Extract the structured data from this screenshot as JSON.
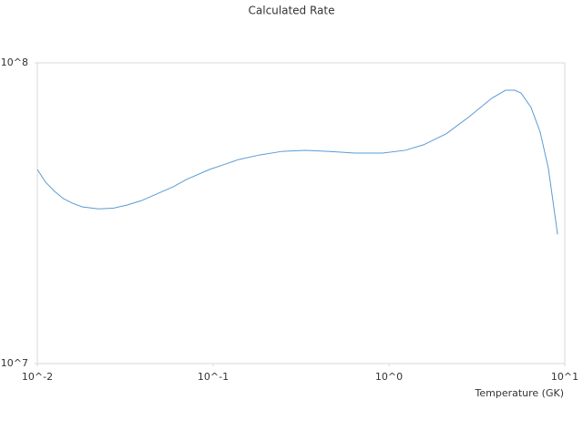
{
  "chart_data": {
    "type": "line",
    "title": "Calculated Rate",
    "x_label": "Temperature (GK)",
    "x": [
      0.01,
      0.01114,
      0.01253,
      0.01413,
      0.01592,
      0.01795,
      0.02223,
      0.02723,
      0.03258,
      0.03899,
      0.04656,
      0.05916,
      0.07079,
      0.09528,
      0.114,
      0.1396,
      0.1837,
      0.2477,
      0.3334,
      0.4498,
      0.6427,
      0.9204,
      1.239,
      1.574,
      2.118,
      2.858,
      3.846,
      4.603,
      5.188,
      5.636,
      6.427,
      7.244,
      8.072,
      9.099
    ],
    "series": [
      {
        "color": "#5b9bd5",
        "values": [
          44200000,
          40100000,
          37400000,
          35300000,
          34100000,
          33200000,
          32700000,
          32900000,
          33700000,
          34800000,
          36400000,
          38700000,
          41000000,
          44200000,
          45800000,
          47700000,
          49400000,
          50800000,
          51200000,
          50800000,
          50100000,
          50100000,
          51200000,
          53400000,
          58100000,
          66200000,
          76300000,
          81100000,
          81100000,
          79400000,
          71100000,
          58900000,
          44500000,
          26900000
        ]
      }
    ],
    "xscale": "log",
    "yscale": "log",
    "xlim": [
      0.01,
      10
    ],
    "ylim": [
      10000000,
      100000000
    ],
    "xticks": [
      {
        "value": 0.01,
        "label": "10^-2"
      },
      {
        "value": 0.1,
        "label": "10^-1"
      },
      {
        "value": 1,
        "label": "10^0"
      },
      {
        "value": 10,
        "label": "10^1"
      }
    ],
    "yticks": [
      {
        "value": 10000000,
        "label": "10^7"
      },
      {
        "value": 100000000,
        "label": "10^8"
      }
    ]
  }
}
